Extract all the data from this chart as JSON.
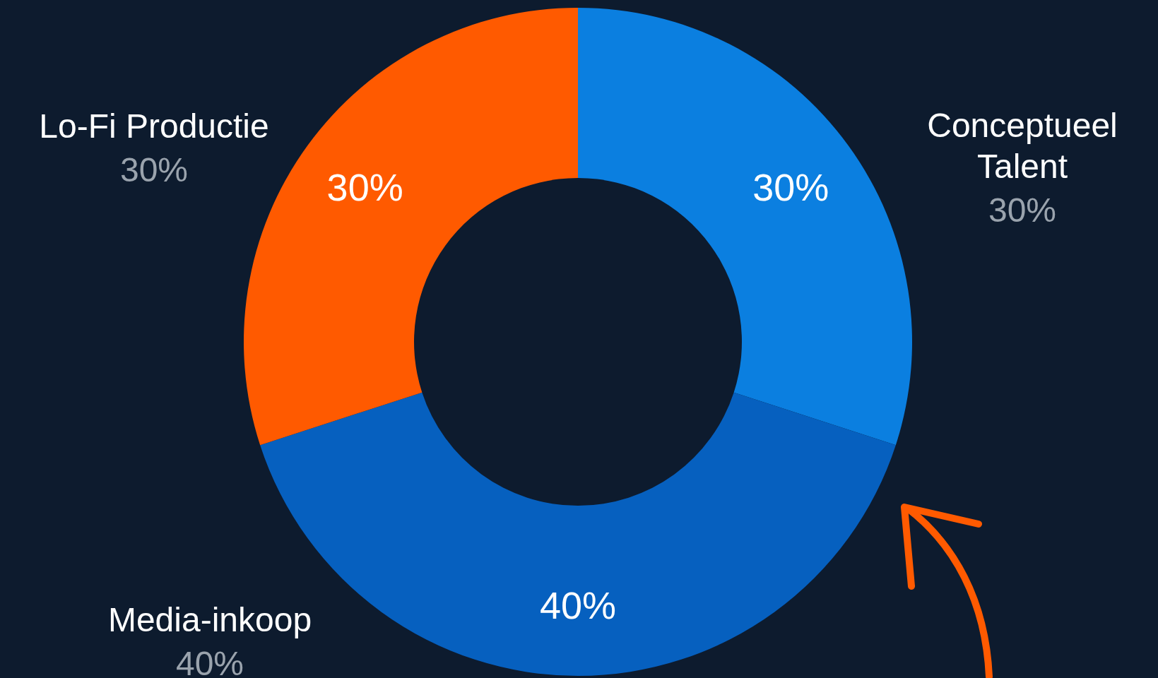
{
  "chart_data": {
    "type": "donut",
    "categories": [
      "Conceptueel Talent",
      "Media-inkoop",
      "Lo-Fi Productie"
    ],
    "values": [
      30,
      40,
      30
    ],
    "value_labels": [
      "30%",
      "40%",
      "30%"
    ],
    "colors": [
      "#0b7fe0",
      "#0660bf",
      "#ff5a00"
    ]
  }
}
